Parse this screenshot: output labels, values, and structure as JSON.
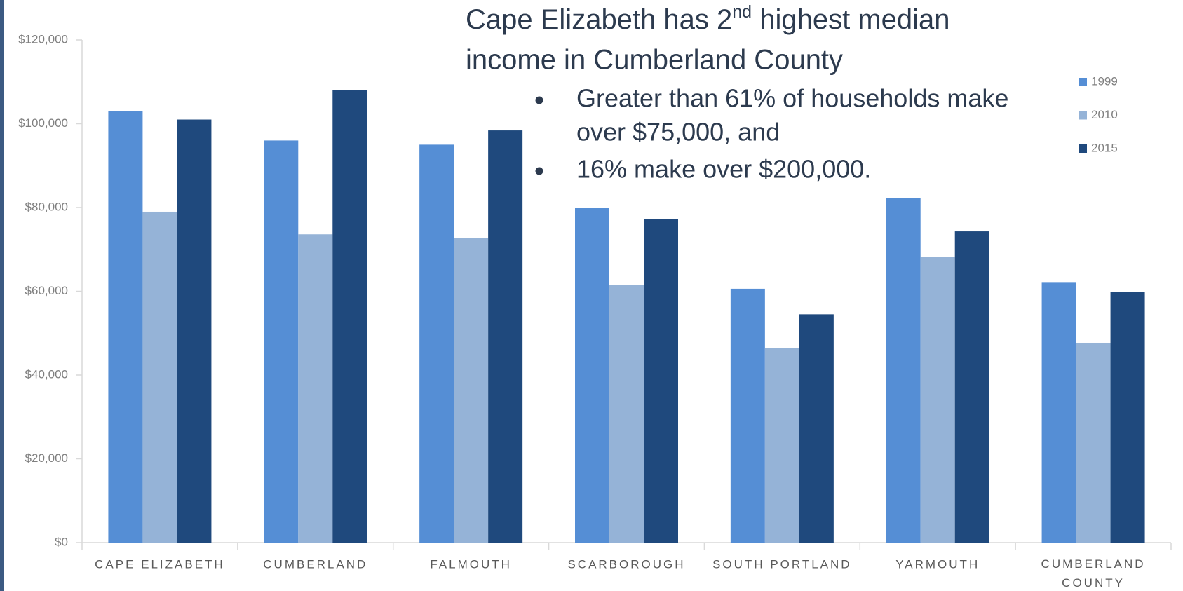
{
  "chart_data": {
    "type": "bar",
    "title": {
      "before": "Cape Elizabeth has 2",
      "sup": "nd",
      "after": " highest median",
      "line2": "income in Cumberland County"
    },
    "bullets": [
      "Greater than 61% of households make",
      "over $75,000, and",
      "16% make over $200,000."
    ],
    "categories": [
      "CAPE ELIZABETH",
      "CUMBERLAND",
      "FALMOUTH",
      "SCARBOROUGH",
      "SOUTH PORTLAND",
      "YARMOUTH",
      "CUMBERLAND COUNTY"
    ],
    "series": [
      {
        "name": "1999",
        "color": "#558ed5",
        "values": [
          103000,
          96000,
          95000,
          80000,
          60600,
          82200,
          62200
        ]
      },
      {
        "name": "2010",
        "color": "#95b3d7",
        "values": [
          79000,
          73600,
          72700,
          61500,
          46400,
          68200,
          47700
        ]
      },
      {
        "name": "2015",
        "color": "#1f497d",
        "values": [
          101000,
          108000,
          98400,
          77200,
          54500,
          74300,
          59900
        ]
      }
    ],
    "ylim": [
      0,
      120000
    ],
    "yticks": [
      {
        "value": 0,
        "label": "$0"
      },
      {
        "value": 20000,
        "label": "$20,000"
      },
      {
        "value": 40000,
        "label": "$40,000"
      },
      {
        "value": 60000,
        "label": "$60,000"
      },
      {
        "value": 80000,
        "label": "$80,000"
      },
      {
        "value": 100000,
        "label": "$100,000"
      },
      {
        "value": 120000,
        "label": "$120,000"
      }
    ],
    "grid": false,
    "legend": "top-right"
  }
}
